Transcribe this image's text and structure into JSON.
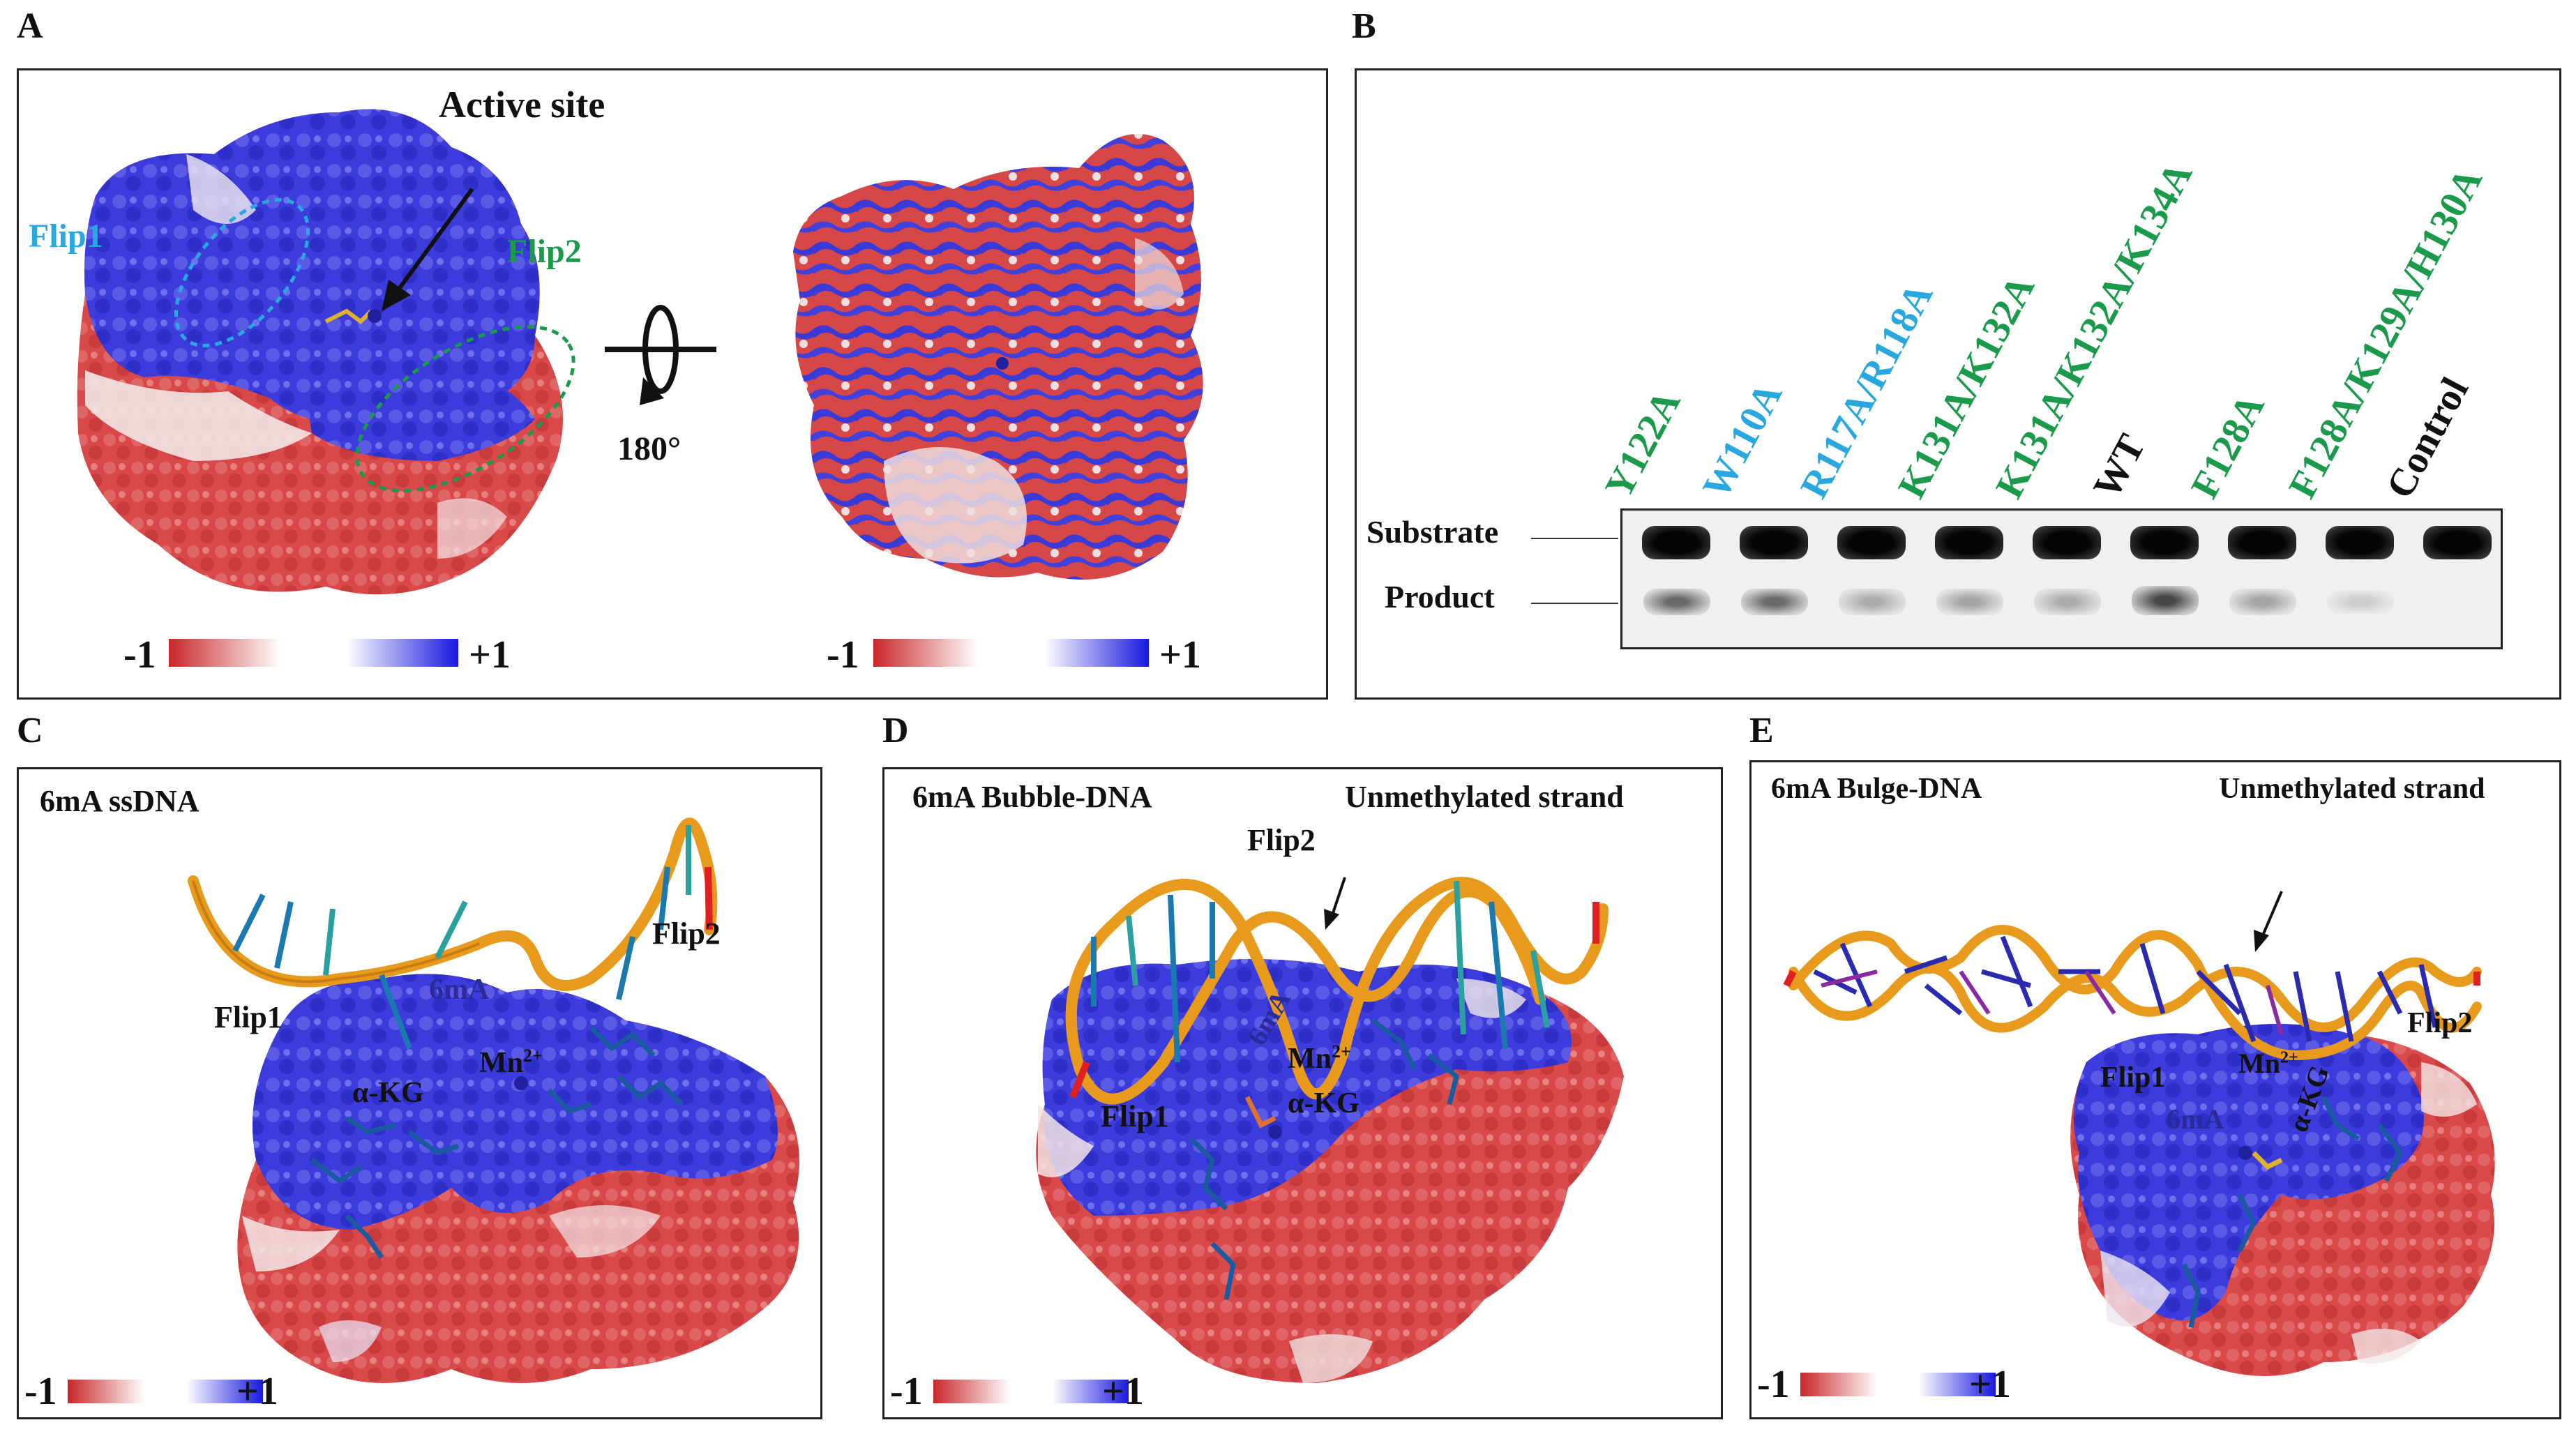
{
  "panels": {
    "a": {
      "label": "A",
      "active_site": "Active site",
      "flip1": "Flip1",
      "flip2": "Flip2",
      "rotation": "180°",
      "scale_min": "-1",
      "scale_max": "+1"
    },
    "b": {
      "label": "B",
      "lanes": [
        "Y122A",
        "W110A",
        "R117A/R118A",
        "K131A/K132A",
        "K131A/K132A/K134A",
        "WT",
        "F128A",
        "F128A/K129A/H130A",
        "Control"
      ],
      "lane_colors": [
        "#1a9a4a",
        "#29a8e0",
        "#29a8e0",
        "#1a9a4a",
        "#1a9a4a",
        "#111111",
        "#1a9a4a",
        "#1a9a4a",
        "#111111"
      ],
      "substrate": "Substrate",
      "product": "Product"
    },
    "c": {
      "label": "C",
      "title": "6mA ssDNA",
      "flip1": "Flip1",
      "flip2": "Flip2",
      "sixma": "6mA",
      "akg": "α-KG",
      "mn": "Mn",
      "mn_sup": "2+",
      "scale_min": "-1",
      "scale_max": "+1"
    },
    "d": {
      "label": "D",
      "title": "6mA Bubble-DNA",
      "unmeth": "Unmethylated strand",
      "flip1": "Flip1",
      "flip2": "Flip2",
      "sixma": "6mA",
      "akg": "α-KG",
      "mn": "Mn",
      "mn_sup": "2+",
      "scale_min": "-1",
      "scale_max": "+1"
    },
    "e": {
      "label": "E",
      "title": "6mA Bulge-DNA",
      "unmeth": "Unmethylated strand",
      "flip1": "Flip1",
      "flip2": "Flip2",
      "sixma": "6mA",
      "akg": "α-KG",
      "mn": "Mn",
      "mn_sup": "2+",
      "scale_min": "-1",
      "scale_max": "+1"
    }
  },
  "colors": {
    "negative": "#d23a3a",
    "positive": "#2b2bd9",
    "neutral": "#f4eded",
    "dna": "#e89a1c",
    "green_label": "#1a9a4a",
    "blue_label": "#29a8e0"
  }
}
